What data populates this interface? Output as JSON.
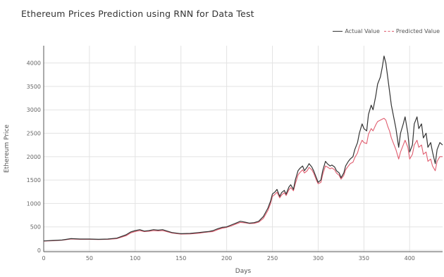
{
  "chart_data": {
    "type": "line",
    "title": "Ethereum Prices Prediction using RNN for Data Test",
    "xlabel": "Days",
    "ylabel": "Ethereum Price",
    "xlim": [
      0,
      436
    ],
    "ylim": [
      -30,
      4370
    ],
    "x_ticks": [
      0,
      50,
      100,
      150,
      200,
      250,
      300,
      350,
      400
    ],
    "y_ticks": [
      0,
      500,
      1000,
      1500,
      2000,
      2500,
      3000,
      3500,
      4000
    ],
    "grid": true,
    "legend": "top-right",
    "series": [
      {
        "name": "Actual Value",
        "color": "#333333",
        "x": [
          0,
          10,
          20,
          30,
          40,
          50,
          60,
          70,
          80,
          90,
          95,
          100,
          105,
          110,
          115,
          120,
          125,
          130,
          140,
          150,
          160,
          170,
          175,
          180,
          185,
          190,
          195,
          200,
          205,
          210,
          215,
          220,
          225,
          230,
          235,
          240,
          245,
          248,
          250,
          253,
          255,
          258,
          260,
          263,
          265,
          268,
          270,
          273,
          275,
          278,
          280,
          283,
          285,
          288,
          290,
          293,
          295,
          298,
          300,
          303,
          305,
          308,
          310,
          313,
          315,
          318,
          320,
          323,
          325,
          328,
          330,
          333,
          335,
          338,
          340,
          343,
          345,
          348,
          350,
          353,
          355,
          358,
          360,
          363,
          365,
          368,
          370,
          372,
          374,
          376,
          378,
          380,
          383,
          385,
          388,
          390,
          393,
          395,
          398,
          400,
          403,
          405,
          408,
          410,
          413,
          415,
          418,
          420,
          423,
          425,
          428,
          430,
          433,
          436
        ],
        "values": [
          200,
          210,
          220,
          250,
          240,
          240,
          235,
          240,
          260,
          330,
          390,
          420,
          440,
          410,
          420,
          440,
          430,
          440,
          380,
          355,
          360,
          380,
          390,
          400,
          420,
          460,
          490,
          500,
          540,
          580,
          620,
          600,
          580,
          590,
          620,
          720,
          900,
          1050,
          1200,
          1250,
          1300,
          1150,
          1230,
          1280,
          1200,
          1350,
          1400,
          1300,
          1500,
          1700,
          1750,
          1800,
          1700,
          1780,
          1850,
          1780,
          1700,
          1550,
          1450,
          1500,
          1700,
          1900,
          1850,
          1800,
          1820,
          1780,
          1700,
          1650,
          1550,
          1650,
          1800,
          1900,
          1950,
          2000,
          2150,
          2300,
          2500,
          2700,
          2600,
          2550,
          2900,
          3100,
          3000,
          3300,
          3550,
          3700,
          3900,
          4150,
          4000,
          3700,
          3400,
          3100,
          2800,
          2600,
          2200,
          2500,
          2700,
          2850,
          2500,
          2100,
          2250,
          2700,
          2850,
          2600,
          2700,
          2400,
          2500,
          2200,
          2300,
          2100,
          1850,
          2150,
          2300,
          2250
        ]
      },
      {
        "name": "Predicted Value",
        "color": "#e05d6f",
        "x": [
          0,
          10,
          20,
          30,
          40,
          50,
          60,
          70,
          80,
          90,
          95,
          100,
          105,
          110,
          115,
          120,
          125,
          130,
          140,
          150,
          160,
          170,
          175,
          180,
          185,
          190,
          195,
          200,
          205,
          210,
          215,
          220,
          225,
          230,
          235,
          240,
          245,
          248,
          250,
          253,
          255,
          258,
          260,
          263,
          265,
          268,
          270,
          273,
          275,
          278,
          280,
          283,
          285,
          288,
          290,
          293,
          295,
          298,
          300,
          303,
          305,
          308,
          310,
          313,
          315,
          318,
          320,
          323,
          325,
          328,
          330,
          333,
          335,
          338,
          340,
          343,
          345,
          348,
          350,
          353,
          355,
          358,
          360,
          363,
          365,
          368,
          370,
          372,
          374,
          376,
          378,
          380,
          383,
          385,
          388,
          390,
          393,
          395,
          398,
          400,
          403,
          405,
          408,
          410,
          413,
          415,
          418,
          420,
          423,
          425,
          428,
          430,
          433,
          436
        ],
        "values": [
          195,
          205,
          215,
          240,
          235,
          235,
          230,
          235,
          250,
          310,
          370,
          400,
          420,
          400,
          405,
          420,
          415,
          420,
          370,
          345,
          350,
          365,
          380,
          390,
          400,
          440,
          470,
          490,
          520,
          560,
          595,
          585,
          570,
          575,
          600,
          680,
          850,
          1000,
          1150,
          1200,
          1240,
          1120,
          1180,
          1230,
          1170,
          1290,
          1340,
          1270,
          1420,
          1610,
          1660,
          1720,
          1650,
          1700,
          1770,
          1720,
          1650,
          1500,
          1420,
          1450,
          1620,
          1800,
          1780,
          1740,
          1760,
          1720,
          1650,
          1600,
          1520,
          1600,
          1720,
          1800,
          1850,
          1880,
          1980,
          2080,
          2220,
          2350,
          2300,
          2280,
          2480,
          2600,
          2550,
          2680,
          2750,
          2780,
          2800,
          2820,
          2780,
          2650,
          2550,
          2400,
          2250,
          2150,
          1950,
          2100,
          2250,
          2350,
          2200,
          1950,
          2050,
          2250,
          2350,
          2200,
          2250,
          2050,
          2100,
          1900,
          1950,
          1800,
          1700,
          1900,
          2000,
          2000
        ]
      }
    ]
  }
}
